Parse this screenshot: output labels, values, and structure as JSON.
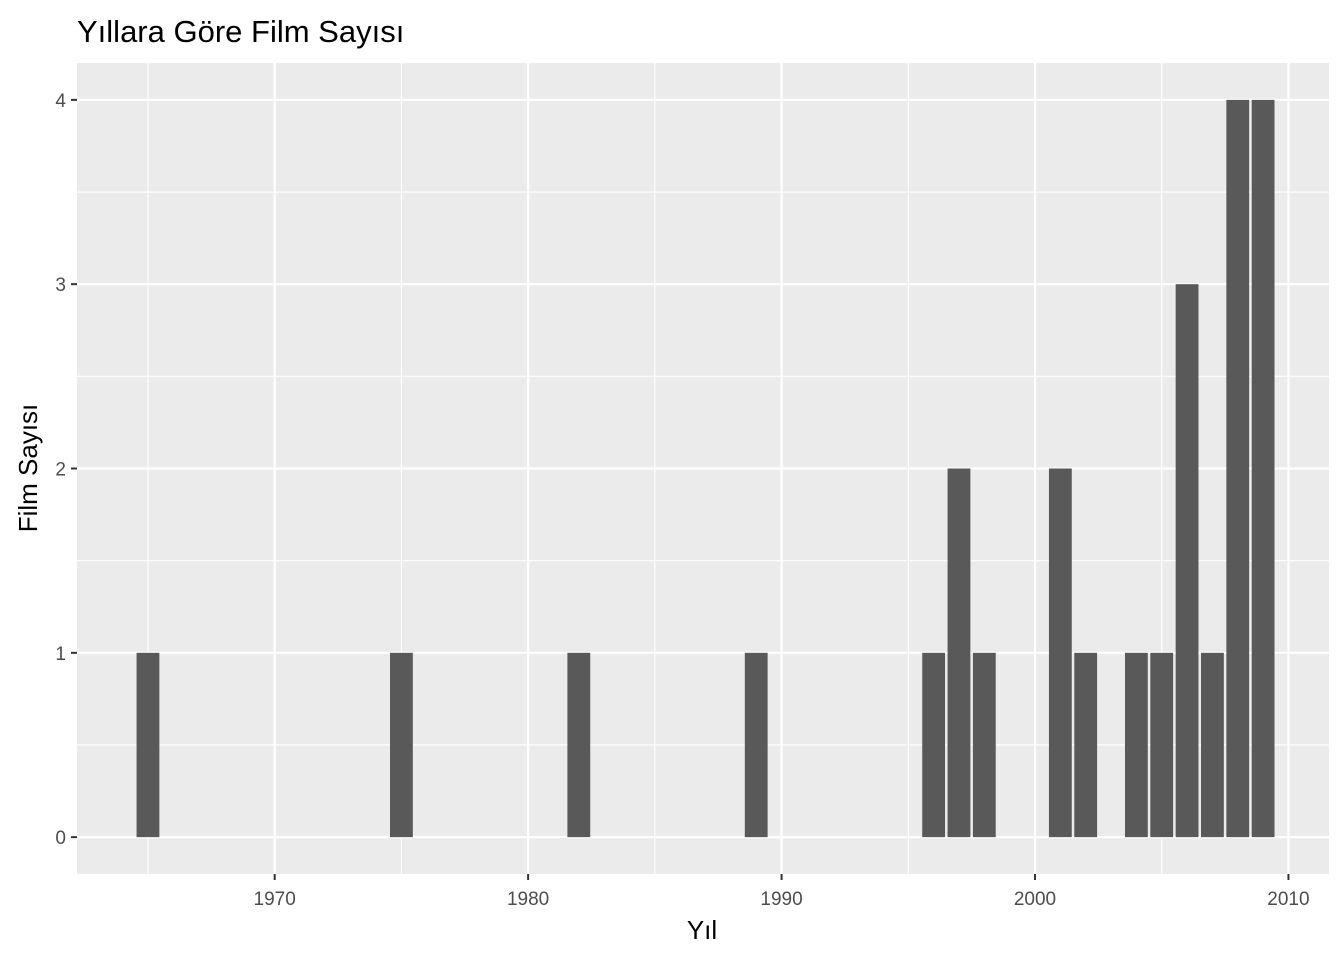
{
  "chart_data": {
    "type": "bar",
    "title": "Yıllara Göre Film Sayısı",
    "xlabel": "Yıl",
    "ylabel": "Film Sayısı",
    "x": [
      1965,
      1975,
      1982,
      1989,
      1996,
      1997,
      1998,
      2001,
      2002,
      2004,
      2005,
      2006,
      2007,
      2008,
      2009
    ],
    "values": [
      1,
      1,
      1,
      1,
      1,
      2,
      1,
      2,
      1,
      1,
      1,
      3,
      1,
      4,
      4
    ],
    "xlim": [
      1962.2,
      2011.6
    ],
    "ylim": [
      -0.2,
      4.2
    ],
    "x_ticks": [
      "1970",
      "1980",
      "1990",
      "2000",
      "2010"
    ],
    "y_ticks": [
      "0",
      "1",
      "2",
      "3",
      "4"
    ],
    "grid": true,
    "colors": {
      "panel": "#ebebeb",
      "grid": "#ffffff",
      "bar": "#595959",
      "tick_text": "#4d4d4d",
      "text": "#000000"
    }
  }
}
